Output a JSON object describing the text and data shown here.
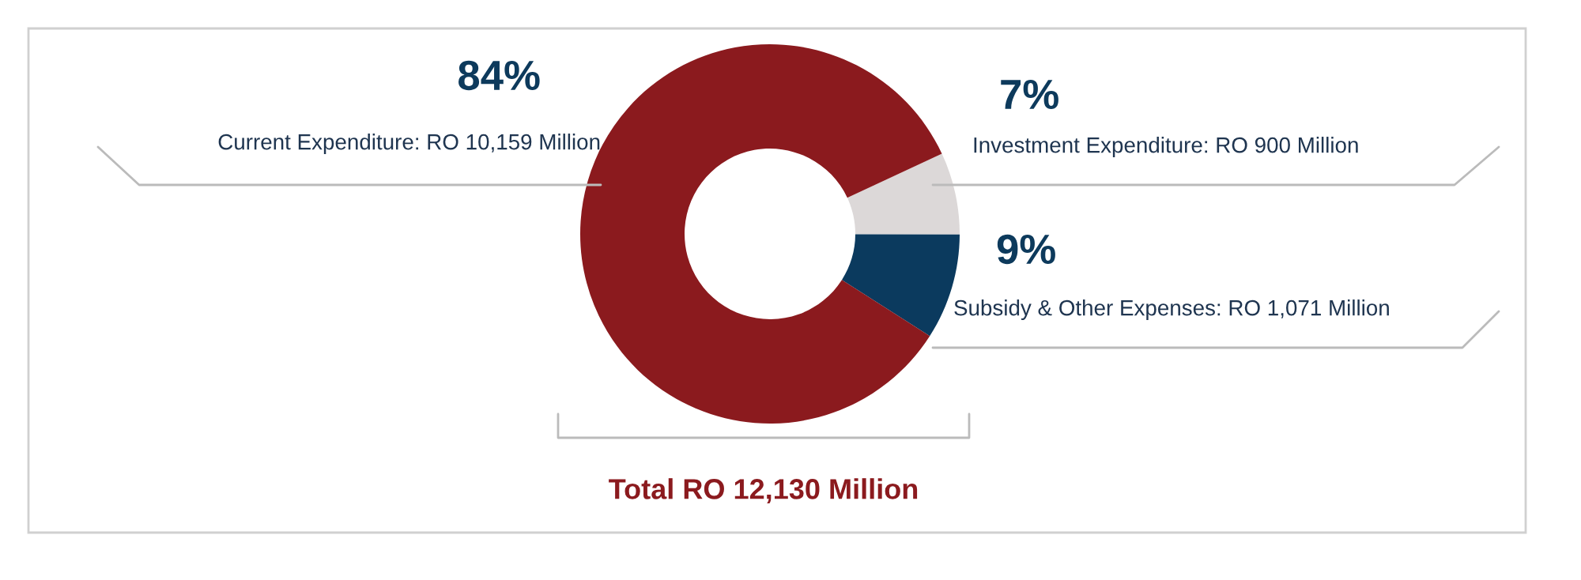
{
  "chart_data": {
    "type": "donut",
    "categories": [
      "Investment Expenditure: RO 900 Million",
      "Subsidy & Other Expenses: RO 1,071 Million",
      "Current Expenditure: RO 10,159 Million"
    ],
    "values": [
      7,
      9,
      84
    ],
    "colors": [
      "#dcd8d8",
      "#0b3a5e",
      "#8b1a1e"
    ],
    "value_labels": [
      "7%",
      "9%",
      "84%"
    ],
    "annotations": [
      "Total RO 12,130 Million"
    ]
  }
}
